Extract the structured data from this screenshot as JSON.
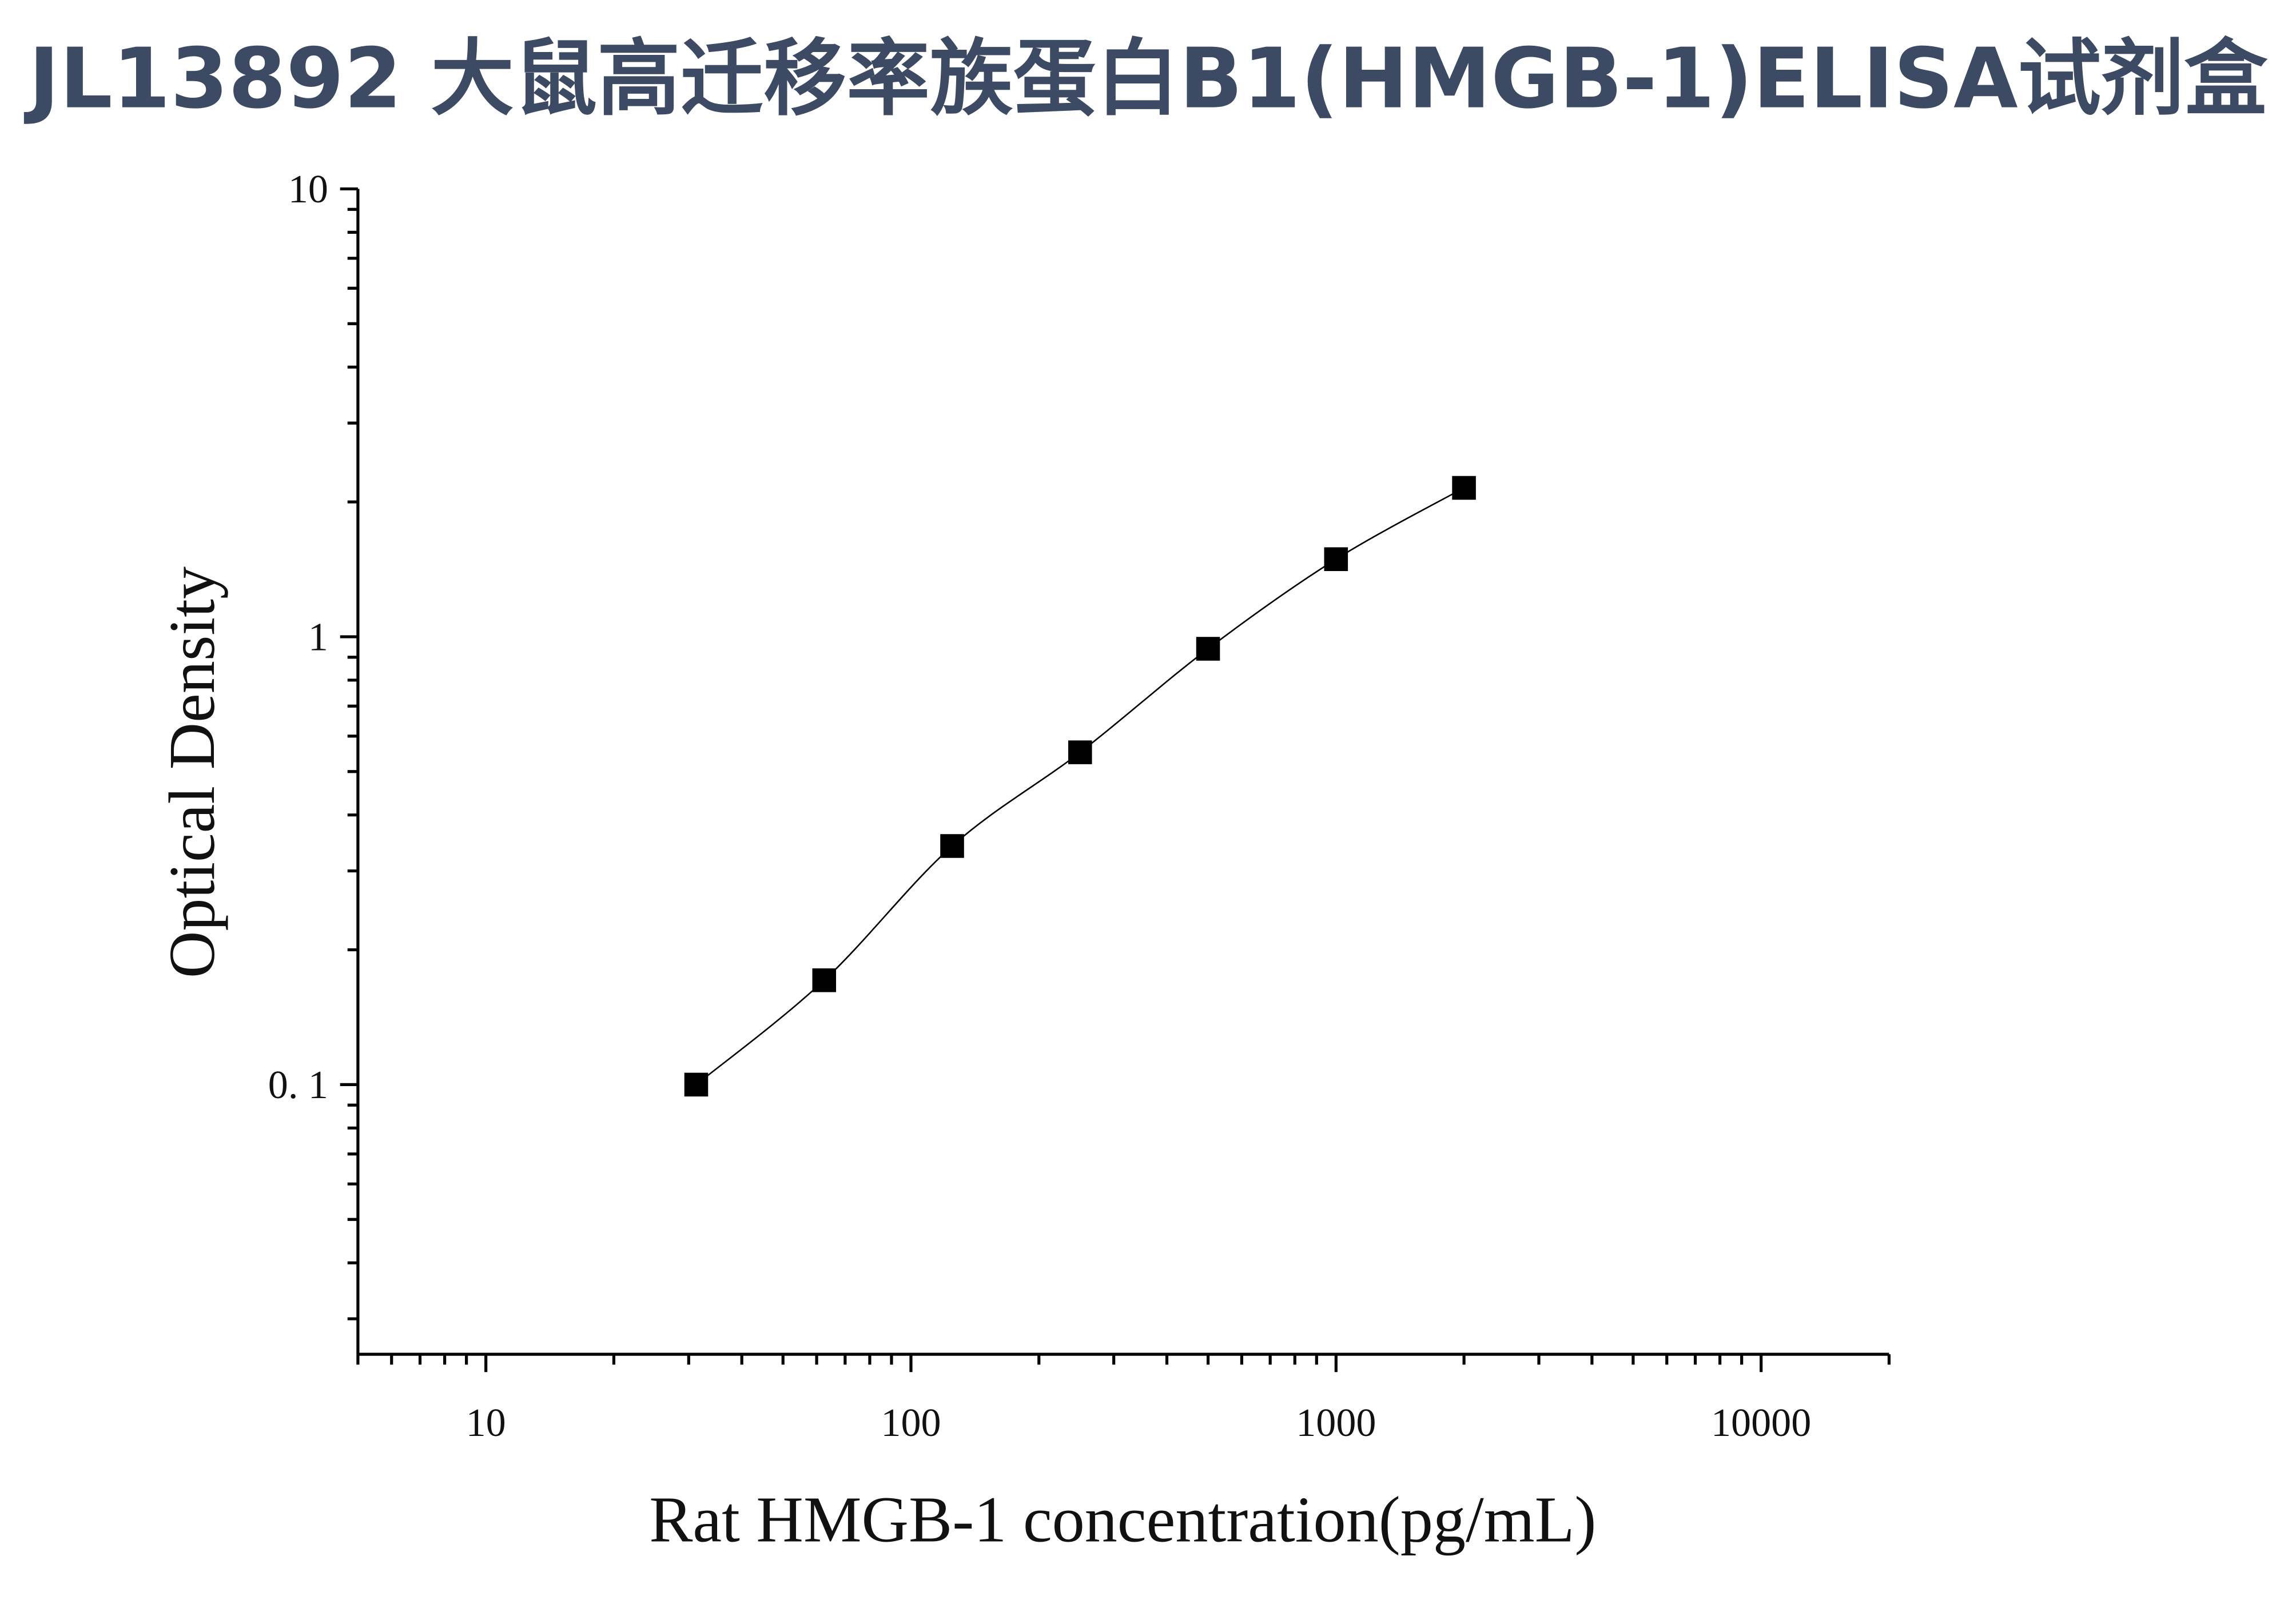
{
  "title": "JL13892 大鼠高迁移率族蛋白B1(HMGB-1)ELISA试剂盒",
  "chart_data": {
    "type": "scatter",
    "xlabel": "Rat HMGB-1 concentration(pg/mL)",
    "ylabel": "Optical Density",
    "x_scale": "log",
    "y_scale": "log",
    "xlim": [
      5,
      20000
    ],
    "ylim": [
      0.025,
      10
    ],
    "x_ticks": [
      10,
      100,
      1000,
      10000
    ],
    "x_tick_labels": [
      "10",
      "100",
      "1000",
      "10000"
    ],
    "y_ticks": [
      0.1,
      1,
      10
    ],
    "y_tick_labels": [
      "0. 1",
      "1",
      "10"
    ],
    "grid": false,
    "marker": "square",
    "fit_line": true,
    "colors": {
      "title": "#3d4a63",
      "marks": "#000000"
    },
    "series": [
      {
        "x": [
          31.25,
          62.5,
          125,
          250,
          500,
          1000,
          2000
        ],
        "y": [
          0.1,
          0.171,
          0.341,
          0.552,
          0.94,
          1.49,
          2.15
        ]
      }
    ]
  }
}
